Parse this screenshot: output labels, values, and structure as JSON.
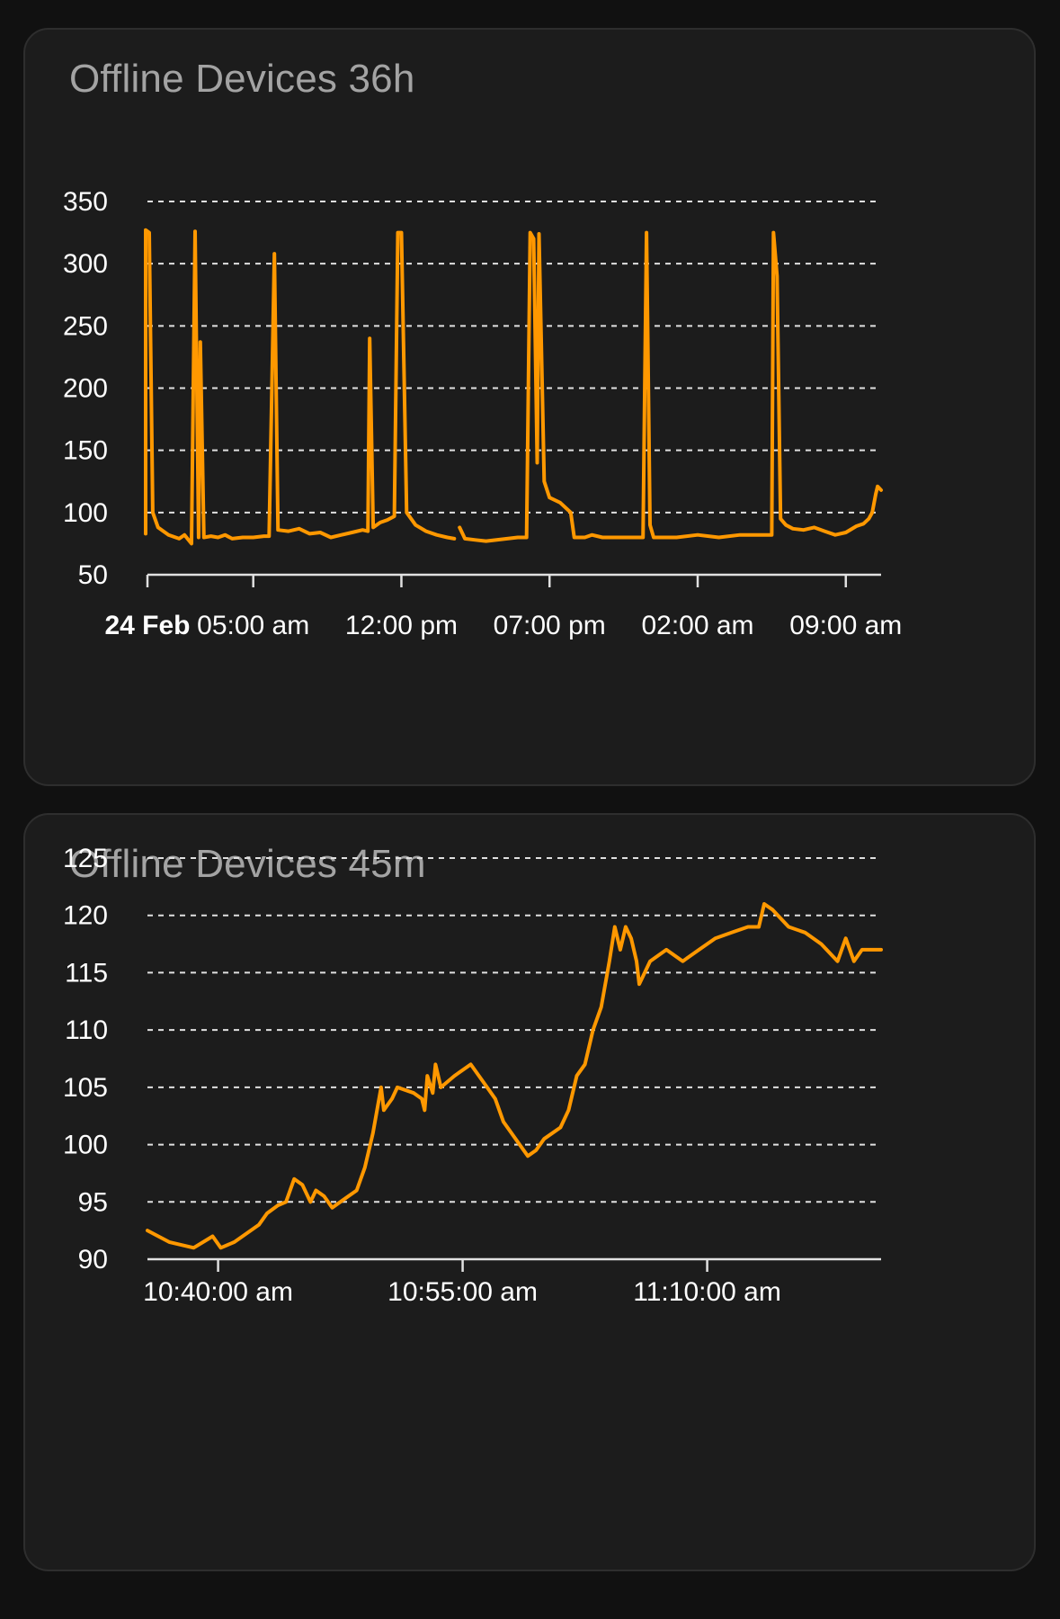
{
  "charts": [
    {
      "title": "Offline Devices 36h"
    },
    {
      "title": "Offline Devices 45m"
    }
  ],
  "colors": {
    "background": "#111111",
    "card": "#1c1c1c",
    "line": "#ff9800",
    "grid": "#e0e0e0",
    "title": "#a3a3a3",
    "tick": "#ffffff"
  },
  "chart_data": [
    {
      "type": "line",
      "title": "Offline Devices 36h",
      "xlabel": "",
      "ylabel": "",
      "ylim": [
        50,
        350
      ],
      "yticks": [
        350,
        300,
        250,
        200,
        150,
        100,
        50
      ],
      "xlim": [
        "2024-02-24 00:00",
        "2024-02-25 10:40"
      ],
      "xticks": [
        {
          "x": "2024-02-24 00:00",
          "label": "24 Feb",
          "bold": true
        },
        {
          "x": "2024-02-24 05:00",
          "label": "05:00 am"
        },
        {
          "x": "2024-02-24 12:00",
          "label": "12:00 pm"
        },
        {
          "x": "2024-02-24 19:00",
          "label": "07:00 pm"
        },
        {
          "x": "2024-02-25 02:00",
          "label": "02:00 am"
        },
        {
          "x": "2024-02-25 09:00",
          "label": "09:00 am"
        }
      ],
      "grid": true,
      "legend": "none",
      "series": [
        {
          "segments": [
            [
              [
                "2024-02-23 23:05",
                83
              ],
              [
                "2024-02-23 23:40",
                83
              ],
              [
                "2024-02-23 23:45",
                86
              ],
              [
                "2024-02-23 23:50",
                83
              ],
              [
                "2024-02-23 23:55",
                327
              ],
              [
                "2024-02-24 00:05",
                325
              ],
              [
                "2024-02-24 00:15",
                100
              ],
              [
                "2024-02-24 00:30",
                88
              ],
              [
                "2024-02-24 00:45",
                85
              ],
              [
                "2024-02-24 01:00",
                82
              ],
              [
                "2024-02-24 01:30",
                79
              ],
              [
                "2024-02-24 01:45",
                82
              ],
              [
                "2024-02-24 02:05",
                75
              ],
              [
                "2024-02-24 02:15",
                326
              ],
              [
                "2024-02-24 02:25",
                80
              ],
              [
                "2024-02-24 02:30",
                237
              ],
              [
                "2024-02-24 02:40",
                80
              ],
              [
                "2024-02-24 03:00",
                81
              ],
              [
                "2024-02-24 03:20",
                80
              ],
              [
                "2024-02-24 03:40",
                82
              ],
              [
                "2024-02-24 04:00",
                79
              ],
              [
                "2024-02-24 04:30",
                80
              ],
              [
                "2024-02-24 05:00",
                80
              ],
              [
                "2024-02-24 05:30",
                81
              ],
              [
                "2024-02-24 05:45",
                81
              ],
              [
                "2024-02-24 06:00",
                308
              ],
              [
                "2024-02-24 06:10",
                86
              ],
              [
                "2024-02-24 06:40",
                85
              ],
              [
                "2024-02-24 07:10",
                87
              ],
              [
                "2024-02-24 07:40",
                83
              ],
              [
                "2024-02-24 08:10",
                84
              ],
              [
                "2024-02-24 08:40",
                80
              ],
              [
                "2024-02-24 09:10",
                82
              ],
              [
                "2024-02-24 09:40",
                84
              ],
              [
                "2024-02-24 10:10",
                86
              ],
              [
                "2024-02-24 10:25",
                85
              ],
              [
                "2024-02-24 10:30",
                240
              ],
              [
                "2024-02-24 10:40",
                88
              ],
              [
                "2024-02-24 11:00",
                92
              ],
              [
                "2024-02-24 11:20",
                94
              ],
              [
                "2024-02-24 11:40",
                97
              ],
              [
                "2024-02-24 11:50",
                325
              ],
              [
                "2024-02-24 12:00",
                325
              ],
              [
                "2024-02-24 12:15",
                100
              ],
              [
                "2024-02-24 12:40",
                90
              ],
              [
                "2024-02-24 13:10",
                85
              ],
              [
                "2024-02-24 13:40",
                82
              ],
              [
                "2024-02-24 14:10",
                80
              ],
              [
                "2024-02-24 14:30",
                79
              ]
            ],
            [
              [
                "2024-02-24 14:45",
                88
              ],
              [
                "2024-02-24 15:00",
                79
              ],
              [
                "2024-02-24 15:30",
                78
              ],
              [
                "2024-02-24 16:00",
                77
              ],
              [
                "2024-02-24 16:30",
                78
              ],
              [
                "2024-02-24 17:30",
                80
              ],
              [
                "2024-02-24 17:55",
                80
              ],
              [
                "2024-02-24 18:05",
                325
              ],
              [
                "2024-02-24 18:15",
                320
              ],
              [
                "2024-02-24 18:25",
                140
              ],
              [
                "2024-02-24 18:30",
                324
              ],
              [
                "2024-02-24 18:45",
                125
              ],
              [
                "2024-02-24 19:00",
                112
              ],
              [
                "2024-02-24 19:30",
                108
              ],
              [
                "2024-02-24 20:00",
                100
              ],
              [
                "2024-02-24 20:10",
                80
              ],
              [
                "2024-02-24 20:40",
                80
              ],
              [
                "2024-02-24 21:00",
                82
              ],
              [
                "2024-02-24 21:30",
                80
              ],
              [
                "2024-02-24 22:00",
                80
              ],
              [
                "2024-02-24 22:40",
                80
              ],
              [
                "2024-02-24 23:00",
                80
              ],
              [
                "2024-02-24 23:25",
                80
              ],
              [
                "2024-02-24 23:35",
                325
              ],
              [
                "2024-02-24 23:45",
                90
              ],
              [
                "2024-02-24 23:55",
                80
              ],
              [
                "2024-02-25 01:00",
                80
              ],
              [
                "2024-02-25 02:00",
                82
              ],
              [
                "2024-02-25 03:00",
                80
              ],
              [
                "2024-02-25 04:00",
                82
              ],
              [
                "2024-02-25 05:00",
                82
              ],
              [
                "2024-02-25 05:30",
                82
              ],
              [
                "2024-02-25 05:35",
                325
              ],
              [
                "2024-02-25 05:45",
                290
              ],
              [
                "2024-02-25 05:55",
                95
              ],
              [
                "2024-02-25 06:10",
                90
              ],
              [
                "2024-02-25 06:30",
                87
              ],
              [
                "2024-02-25 07:00",
                86
              ],
              [
                "2024-02-25 07:30",
                88
              ],
              [
                "2024-02-25 08:00",
                85
              ],
              [
                "2024-02-25 08:30",
                82
              ],
              [
                "2024-02-25 09:00",
                84
              ],
              [
                "2024-02-25 09:30",
                89
              ],
              [
                "2024-02-25 09:50",
                91
              ],
              [
                "2024-02-25 10:05",
                95
              ],
              [
                "2024-02-25 10:15",
                100
              ],
              [
                "2024-02-25 10:25",
                115
              ],
              [
                "2024-02-25 10:30",
                121
              ],
              [
                "2024-02-25 10:40",
                118
              ]
            ]
          ]
        }
      ]
    },
    {
      "type": "line",
      "title": "Offline Devices 45m",
      "xlabel": "",
      "ylabel": "",
      "ylim": [
        90,
        125
      ],
      "yticks": [
        125,
        120,
        115,
        110,
        105,
        100,
        95,
        90
      ],
      "xlim": [
        "10:35:40",
        "11:20:40"
      ],
      "xticks": [
        {
          "x": "10:40:00",
          "label": "10:40:00 am"
        },
        {
          "x": "10:55:00",
          "label": "10:55:00 am"
        },
        {
          "x": "11:10:00",
          "label": "11:10:00 am"
        }
      ],
      "grid": true,
      "legend": "none",
      "series": [
        {
          "segments": [
            [
              [
                "10:35:40",
                92.5
              ],
              [
                "10:37:00",
                91.5
              ],
              [
                "10:38:30",
                91
              ],
              [
                "10:39:40",
                92
              ],
              [
                "10:40:10",
                91
              ],
              [
                "10:41:00",
                91.5
              ],
              [
                "10:42:30",
                93
              ],
              [
                "10:43:00",
                94
              ],
              [
                "10:43:40",
                94.7
              ],
              [
                "10:44:10",
                95
              ],
              [
                "10:44:40",
                97
              ],
              [
                "10:45:10",
                96.5
              ],
              [
                "10:45:40",
                95
              ],
              [
                "10:46:00",
                96
              ],
              [
                "10:46:30",
                95.5
              ],
              [
                "10:47:00",
                94.5
              ],
              [
                "10:47:30",
                95
              ],
              [
                "10:48:00",
                95.5
              ],
              [
                "10:48:30",
                96
              ],
              [
                "10:49:00",
                98
              ],
              [
                "10:49:30",
                101
              ],
              [
                "10:50:00",
                105
              ],
              [
                "10:50:10",
                103
              ],
              [
                "10:50:40",
                104
              ],
              [
                "10:51:00",
                105
              ],
              [
                "10:52:00",
                104.5
              ],
              [
                "10:52:30",
                104
              ],
              [
                "10:52:40",
                103
              ],
              [
                "10:52:50",
                106
              ],
              [
                "10:53:10",
                104.5
              ],
              [
                "10:53:20",
                107
              ],
              [
                "10:53:40",
                105
              ],
              [
                "10:54:30",
                106
              ],
              [
                "10:55:30",
                107
              ],
              [
                "10:56:30",
                105
              ],
              [
                "10:57:00",
                104
              ],
              [
                "10:57:30",
                102
              ],
              [
                "10:58:30",
                100
              ],
              [
                "10:59:00",
                99
              ],
              [
                "10:59:30",
                99.5
              ],
              [
                "11:00:00",
                100.5
              ],
              [
                "11:01:00",
                101.5
              ],
              [
                "11:01:30",
                103
              ],
              [
                "11:02:00",
                106
              ],
              [
                "11:02:30",
                107
              ],
              [
                "11:03:00",
                110
              ],
              [
                "11:03:30",
                112
              ],
              [
                "11:04:00",
                116
              ],
              [
                "11:04:20",
                119
              ],
              [
                "11:04:40",
                117
              ],
              [
                "11:05:00",
                119
              ],
              [
                "11:05:20",
                118
              ],
              [
                "11:05:40",
                116
              ],
              [
                "11:05:50",
                114
              ],
              [
                "11:06:10",
                115
              ],
              [
                "11:06:30",
                116
              ],
              [
                "11:07:30",
                117
              ],
              [
                "11:08:30",
                116
              ],
              [
                "11:09:30",
                117
              ],
              [
                "11:10:30",
                118
              ],
              [
                "11:11:30",
                118.5
              ],
              [
                "11:12:30",
                119
              ],
              [
                "11:13:10",
                119
              ],
              [
                "11:13:30",
                121
              ],
              [
                "11:14:00",
                120.5
              ],
              [
                "11:15:00",
                119
              ],
              [
                "11:16:00",
                118.5
              ],
              [
                "11:17:00",
                117.5
              ],
              [
                "11:18:00",
                116
              ],
              [
                "11:18:30",
                118
              ],
              [
                "11:19:00",
                116
              ],
              [
                "11:19:30",
                117
              ],
              [
                "11:20:40",
                117
              ]
            ]
          ]
        }
      ]
    }
  ]
}
